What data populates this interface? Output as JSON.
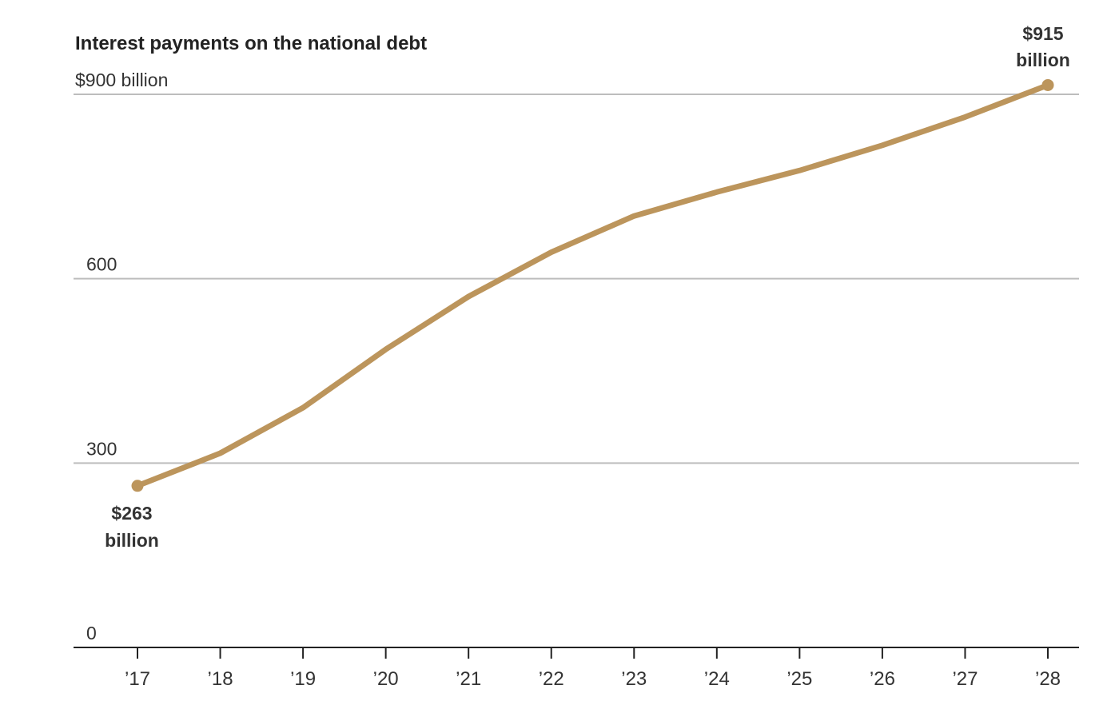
{
  "chart_data": {
    "type": "line",
    "title": "Interest payments on the national debt",
    "x": [
      "’17",
      "’18",
      "’19",
      "’20",
      "’21",
      "’22",
      "’23",
      "’24",
      "’25",
      "’26",
      "’27",
      "’28"
    ],
    "series": [
      {
        "values": [
          263,
          316,
          390,
          485,
          571,
          643,
          702,
          741,
          776,
          817,
          863,
          915
        ]
      }
    ],
    "ylim": [
      0,
      900
    ],
    "y_ticks": [
      {
        "value": 900,
        "label": "$900 billion"
      },
      {
        "value": 600,
        "label": "600"
      },
      {
        "value": 300,
        "label": "300"
      },
      {
        "value": 0,
        "label": "0"
      }
    ],
    "annotations": [
      {
        "x_index": 0,
        "line1": "$263",
        "line2": "billion"
      },
      {
        "x_index": 11,
        "line1": "$915",
        "line2": "billion"
      }
    ],
    "grid": true,
    "line_color": "#bc955c"
  }
}
